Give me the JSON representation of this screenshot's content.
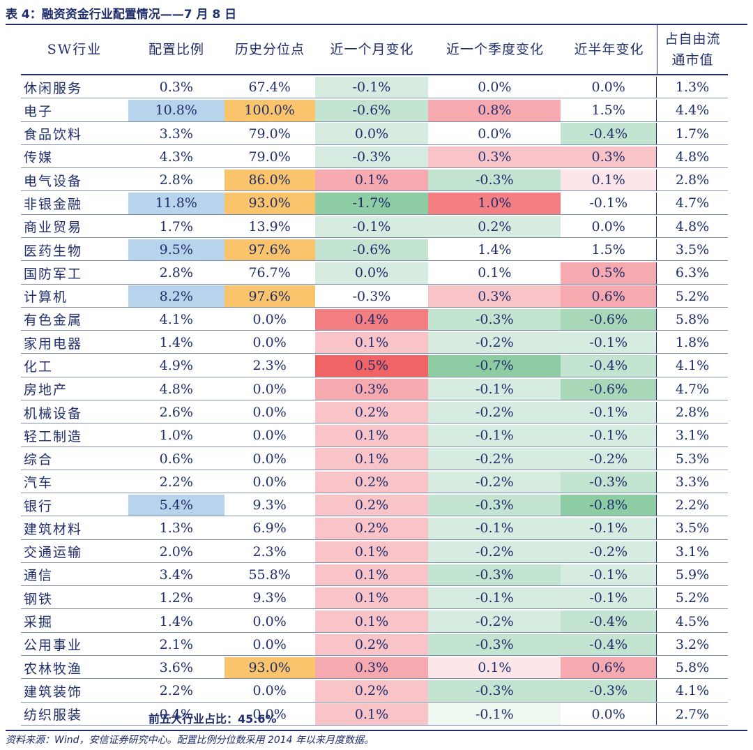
{
  "title": "表 4：融资资金行业配置情况——7 月 8 日",
  "summary": "前五大行业占比：45.6%",
  "source": "资料来源：Wind，安信证券研究中心。配置比例分位数采用 2014 年以来月度数据。",
  "colors": {
    "blue": "#b8d3ec",
    "orange": "#f9c46b",
    "red_scale": [
      "#fde6ea",
      "#f9c4c8",
      "#f6a9ae",
      "#f37f82",
      "#f06466"
    ],
    "green_scale": [
      "#eef7f0",
      "#d6ece0",
      "#c3e4d0",
      "#a8d8b8",
      "#8ecda3"
    ]
  },
  "chart_data": {
    "type": "table",
    "columns": [
      "SW行业",
      "配置比例",
      "历史分位点",
      "近一个月变化",
      "近一个季度变化",
      "近半年变化",
      "占自由流通市值"
    ],
    "rows": [
      [
        "休闲服务",
        "0.3%",
        "67.4%",
        "-0.1%",
        "0.0%",
        "0.0%",
        "1.3%"
      ],
      [
        "电子",
        "10.8%",
        "100.0%",
        "-0.6%",
        "0.8%",
        "1.5%",
        "4.4%"
      ],
      [
        "食品饮料",
        "3.3%",
        "79.0%",
        "0.0%",
        "0.0%",
        "-0.4%",
        "1.7%"
      ],
      [
        "传媒",
        "4.3%",
        "79.0%",
        "-0.3%",
        "0.3%",
        "0.3%",
        "4.8%"
      ],
      [
        "电气设备",
        "2.8%",
        "86.0%",
        "0.1%",
        "-0.3%",
        "0.1%",
        "2.8%"
      ],
      [
        "非银金融",
        "11.8%",
        "93.0%",
        "-1.7%",
        "1.0%",
        "-0.1%",
        "4.7%"
      ],
      [
        "商业贸易",
        "1.7%",
        "13.9%",
        "-0.1%",
        "0.2%",
        "0.0%",
        "4.8%"
      ],
      [
        "医药生物",
        "9.5%",
        "97.6%",
        "-0.6%",
        "1.4%",
        "1.5%",
        "3.5%"
      ],
      [
        "国防军工",
        "2.8%",
        "76.7%",
        "0.0%",
        "0.1%",
        "0.5%",
        "6.3%"
      ],
      [
        "计算机",
        "8.2%",
        "97.6%",
        "-0.3%",
        "0.3%",
        "0.6%",
        "5.2%"
      ],
      [
        "有色金属",
        "4.1%",
        "0.0%",
        "0.4%",
        "-0.3%",
        "-0.6%",
        "5.8%"
      ],
      [
        "家用电器",
        "1.4%",
        "0.0%",
        "0.1%",
        "-0.2%",
        "-0.1%",
        "1.8%"
      ],
      [
        "化工",
        "4.9%",
        "2.3%",
        "0.5%",
        "-0.7%",
        "-0.4%",
        "4.1%"
      ],
      [
        "房地产",
        "4.8%",
        "0.0%",
        "0.3%",
        "-0.1%",
        "-0.6%",
        "4.7%"
      ],
      [
        "机械设备",
        "2.6%",
        "0.0%",
        "0.2%",
        "-0.2%",
        "-0.1%",
        "2.8%"
      ],
      [
        "轻工制造",
        "1.0%",
        "0.0%",
        "0.1%",
        "-0.1%",
        "-0.1%",
        "3.1%"
      ],
      [
        "综合",
        "0.6%",
        "0.0%",
        "0.1%",
        "-0.2%",
        "-0.2%",
        "5.3%"
      ],
      [
        "汽车",
        "2.2%",
        "0.0%",
        "0.2%",
        "-0.2%",
        "-0.3%",
        "3.3%"
      ],
      [
        "银行",
        "5.4%",
        "9.3%",
        "0.2%",
        "-0.3%",
        "-0.8%",
        "2.2%"
      ],
      [
        "建筑材料",
        "1.3%",
        "6.9%",
        "0.2%",
        "-0.1%",
        "-0.1%",
        "3.5%"
      ],
      [
        "交通运输",
        "2.0%",
        "2.3%",
        "0.1%",
        "-0.2%",
        "-0.2%",
        "3.1%"
      ],
      [
        "通信",
        "3.4%",
        "55.8%",
        "0.1%",
        "-0.3%",
        "-0.1%",
        "5.9%"
      ],
      [
        "钢铁",
        "1.2%",
        "9.3%",
        "0.1%",
        "-0.1%",
        "-0.1%",
        "5.2%"
      ],
      [
        "采掘",
        "1.4%",
        "0.0%",
        "0.1%",
        "-0.2%",
        "-0.4%",
        "4.5%"
      ],
      [
        "公用事业",
        "2.1%",
        "0.0%",
        "0.2%",
        "-0.3%",
        "-0.4%",
        "3.2%"
      ],
      [
        "农林牧渔",
        "3.6%",
        "93.0%",
        "0.3%",
        "0.1%",
        "0.6%",
        "5.8%"
      ],
      [
        "建筑装饰",
        "2.2%",
        "0.0%",
        "0.2%",
        "-0.3%",
        "-0.3%",
        "4.1%"
      ],
      [
        "纺织服装",
        "0.4%",
        "0.0%",
        "0.1%",
        "-0.1%",
        "0.0%",
        "2.7%"
      ]
    ],
    "highlights": {
      "blue": [
        [
          1,
          1
        ],
        [
          5,
          1
        ],
        [
          7,
          1
        ],
        [
          9,
          1
        ],
        [
          18,
          1
        ]
      ],
      "orange": [
        [
          1,
          2
        ],
        [
          4,
          2
        ],
        [
          5,
          2
        ],
        [
          7,
          2
        ],
        [
          9,
          2
        ],
        [
          25,
          2
        ]
      ],
      "heat": {
        "3": [
          [
            "g2",
            1
          ],
          [
            "g2",
            4
          ],
          [
            "g4",
            5
          ],
          [
            "g2",
            7
          ],
          [
            "g1",
            0
          ],
          [
            "r2",
            4
          ],
          [
            "r3",
            10
          ],
          [
            "r1",
            11
          ],
          [
            "r4",
            12
          ],
          [
            "r2",
            13
          ],
          [
            "r1",
            14
          ],
          [
            "r1",
            15
          ],
          [
            "r1",
            16
          ],
          [
            "r1",
            17
          ],
          [
            "r1",
            18
          ],
          [
            "r1",
            19
          ],
          [
            "r1",
            20
          ],
          [
            "r1",
            21
          ],
          [
            "r1",
            22
          ],
          [
            "r1",
            23
          ],
          [
            "r1",
            24
          ],
          [
            "r2",
            25
          ],
          [
            "r1",
            26
          ],
          [
            "r1",
            27
          ],
          [
            "g1",
            2
          ],
          [
            "g1",
            3
          ],
          [
            "g1",
            6
          ],
          [
            "g1",
            8
          ]
        ],
        "4": [
          [
            "r2",
            1
          ],
          [
            "r3",
            5
          ],
          [
            "r5",
            7
          ],
          [
            "r1",
            3
          ],
          [
            "g2",
            4
          ],
          [
            "g1",
            6
          ],
          [
            "r1",
            9
          ],
          [
            "g2",
            10
          ],
          [
            "g1",
            11
          ],
          [
            "g4",
            12
          ],
          [
            "g1",
            13
          ],
          [
            "g1",
            14
          ],
          [
            "g1",
            15
          ],
          [
            "g1",
            16
          ],
          [
            "g1",
            17
          ],
          [
            "g2",
            18
          ],
          [
            "g1",
            19
          ],
          [
            "g1",
            20
          ],
          [
            "g2",
            21
          ],
          [
            "g1",
            22
          ],
          [
            "g1",
            23
          ],
          [
            "g2",
            24
          ],
          [
            "r0",
            25
          ],
          [
            "g2",
            26
          ],
          [
            "g0",
            27
          ]
        ],
        "5": [
          [
            "r5",
            1
          ],
          [
            "g2",
            2
          ],
          [
            "r1",
            3
          ],
          [
            "r0",
            4
          ],
          [
            "r5",
            7
          ],
          [
            "r2",
            8
          ],
          [
            "r2",
            9
          ],
          [
            "g3",
            10
          ],
          [
            "g1",
            11
          ],
          [
            "g2",
            12
          ],
          [
            "g3",
            13
          ],
          [
            "g1",
            14
          ],
          [
            "g1",
            15
          ],
          [
            "g1",
            16
          ],
          [
            "g2",
            17
          ],
          [
            "g4",
            18
          ],
          [
            "g1",
            19
          ],
          [
            "g1",
            20
          ],
          [
            "g1",
            21
          ],
          [
            "g1",
            22
          ],
          [
            "g2",
            23
          ],
          [
            "g2",
            24
          ],
          [
            "r2",
            25
          ],
          [
            "g2",
            26
          ]
        ]
      }
    }
  }
}
